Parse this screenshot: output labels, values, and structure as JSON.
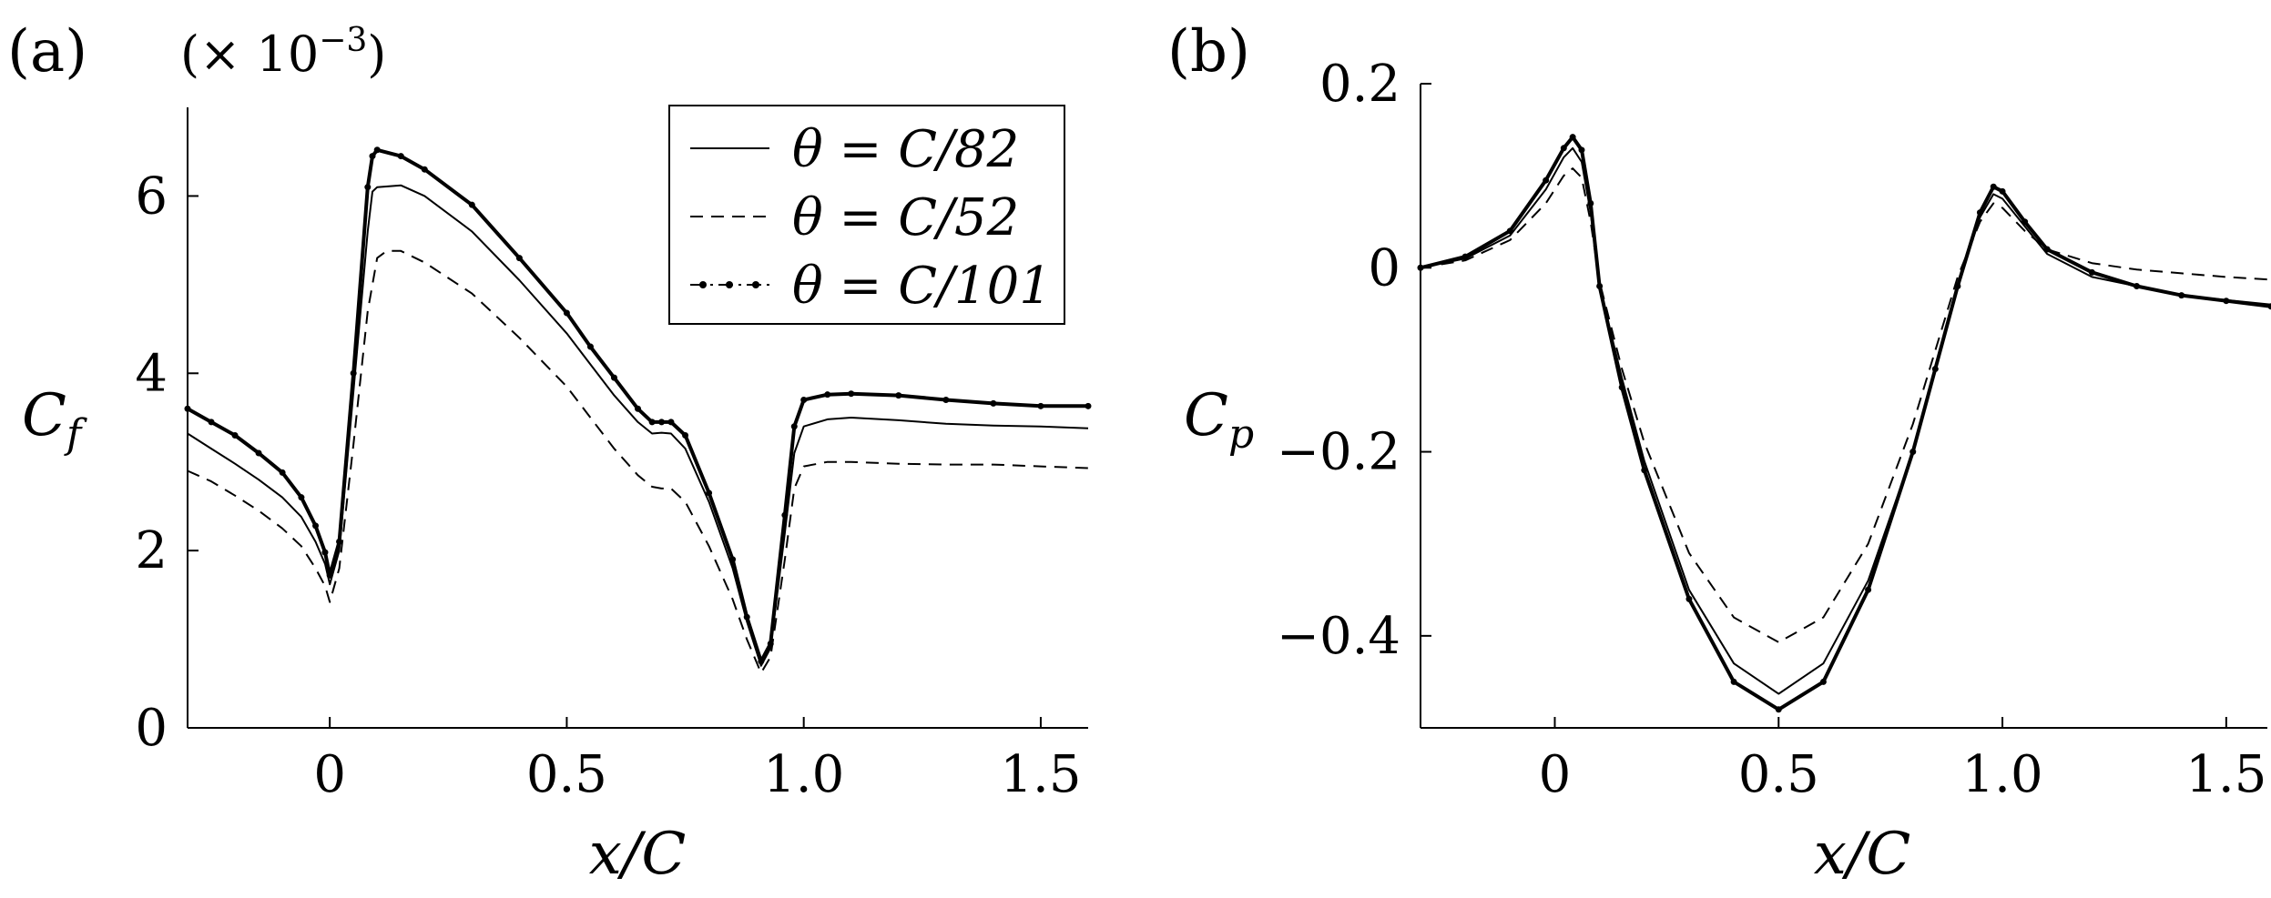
{
  "chart_data": [
    {
      "type": "line",
      "panel_label": "(a)",
      "xlabel": "x/C",
      "ylabel_main": "C",
      "ylabel_sub": "f",
      "scale_note": "(× 10",
      "scale_exp": "−3",
      "scale_close": ")",
      "xlim": [
        -0.3,
        1.6
      ],
      "ylim": [
        0,
        7
      ],
      "xticks": [
        0,
        0.5,
        1.0,
        1.5
      ],
      "xtick_labels": [
        "0",
        "0.5",
        "1.0",
        "1.5"
      ],
      "yticks": [
        0,
        2,
        4,
        6
      ],
      "ytick_labels": [
        "0",
        "2",
        "4",
        "6"
      ],
      "legend_placement": "top-right",
      "series": [
        {
          "name": "θ = C/82",
          "style": "solid",
          "points": [
            [
              -0.3,
              3.32
            ],
            [
              -0.25,
              3.15
            ],
            [
              -0.2,
              2.98
            ],
            [
              -0.15,
              2.8
            ],
            [
              -0.1,
              2.6
            ],
            [
              -0.06,
              2.38
            ],
            [
              -0.03,
              2.1
            ],
            [
              -0.01,
              1.85
            ],
            [
              0.0,
              1.62
            ],
            [
              0.02,
              2.0
            ],
            [
              0.05,
              3.8
            ],
            [
              0.08,
              5.6
            ],
            [
              0.09,
              6.05
            ],
            [
              0.1,
              6.1
            ],
            [
              0.15,
              6.12
            ],
            [
              0.2,
              6.0
            ],
            [
              0.3,
              5.6
            ],
            [
              0.4,
              5.05
            ],
            [
              0.5,
              4.45
            ],
            [
              0.55,
              4.1
            ],
            [
              0.6,
              3.75
            ],
            [
              0.65,
              3.45
            ],
            [
              0.68,
              3.32
            ],
            [
              0.7,
              3.33
            ],
            [
              0.72,
              3.32
            ],
            [
              0.75,
              3.15
            ],
            [
              0.8,
              2.55
            ],
            [
              0.85,
              1.8
            ],
            [
              0.88,
              1.2
            ],
            [
              0.91,
              0.7
            ],
            [
              0.93,
              0.9
            ],
            [
              0.96,
              2.2
            ],
            [
              0.98,
              3.1
            ],
            [
              1.0,
              3.4
            ],
            [
              1.05,
              3.48
            ],
            [
              1.1,
              3.5
            ],
            [
              1.2,
              3.47
            ],
            [
              1.3,
              3.43
            ],
            [
              1.4,
              3.41
            ],
            [
              1.5,
              3.4
            ],
            [
              1.6,
              3.38
            ]
          ]
        },
        {
          "name": "θ = C/52",
          "style": "dashed",
          "points": [
            [
              -0.3,
              2.9
            ],
            [
              -0.25,
              2.78
            ],
            [
              -0.2,
              2.62
            ],
            [
              -0.15,
              2.45
            ],
            [
              -0.1,
              2.25
            ],
            [
              -0.06,
              2.05
            ],
            [
              -0.03,
              1.8
            ],
            [
              -0.01,
              1.6
            ],
            [
              0.0,
              1.42
            ],
            [
              0.02,
              1.8
            ],
            [
              0.05,
              3.2
            ],
            [
              0.08,
              4.7
            ],
            [
              0.1,
              5.3
            ],
            [
              0.12,
              5.38
            ],
            [
              0.15,
              5.38
            ],
            [
              0.2,
              5.25
            ],
            [
              0.3,
              4.9
            ],
            [
              0.4,
              4.4
            ],
            [
              0.5,
              3.85
            ],
            [
              0.55,
              3.5
            ],
            [
              0.6,
              3.15
            ],
            [
              0.65,
              2.85
            ],
            [
              0.68,
              2.72
            ],
            [
              0.7,
              2.7
            ],
            [
              0.72,
              2.7
            ],
            [
              0.75,
              2.55
            ],
            [
              0.8,
              2.05
            ],
            [
              0.85,
              1.45
            ],
            [
              0.88,
              1.0
            ],
            [
              0.91,
              0.62
            ],
            [
              0.93,
              0.8
            ],
            [
              0.96,
              1.9
            ],
            [
              0.98,
              2.7
            ],
            [
              1.0,
              2.95
            ],
            [
              1.05,
              3.0
            ],
            [
              1.1,
              3.0
            ],
            [
              1.2,
              2.98
            ],
            [
              1.3,
              2.97
            ],
            [
              1.4,
              2.97
            ],
            [
              1.5,
              2.95
            ],
            [
              1.6,
              2.93
            ]
          ]
        },
        {
          "name": "θ = C/101",
          "style": "dash-dot-marker",
          "points": [
            [
              -0.3,
              3.6
            ],
            [
              -0.25,
              3.45
            ],
            [
              -0.2,
              3.3
            ],
            [
              -0.15,
              3.1
            ],
            [
              -0.1,
              2.88
            ],
            [
              -0.06,
              2.6
            ],
            [
              -0.03,
              2.28
            ],
            [
              -0.01,
              1.98
            ],
            [
              0.0,
              1.72
            ],
            [
              0.02,
              2.1
            ],
            [
              0.05,
              4.0
            ],
            [
              0.08,
              6.1
            ],
            [
              0.09,
              6.45
            ],
            [
              0.1,
              6.52
            ],
            [
              0.15,
              6.45
            ],
            [
              0.2,
              6.3
            ],
            [
              0.3,
              5.9
            ],
            [
              0.4,
              5.3
            ],
            [
              0.5,
              4.68
            ],
            [
              0.55,
              4.3
            ],
            [
              0.6,
              3.95
            ],
            [
              0.65,
              3.6
            ],
            [
              0.68,
              3.45
            ],
            [
              0.7,
              3.45
            ],
            [
              0.72,
              3.45
            ],
            [
              0.75,
              3.3
            ],
            [
              0.8,
              2.65
            ],
            [
              0.85,
              1.9
            ],
            [
              0.88,
              1.25
            ],
            [
              0.91,
              0.75
            ],
            [
              0.93,
              0.95
            ],
            [
              0.96,
              2.4
            ],
            [
              0.98,
              3.4
            ],
            [
              1.0,
              3.7
            ],
            [
              1.05,
              3.76
            ],
            [
              1.1,
              3.77
            ],
            [
              1.2,
              3.75
            ],
            [
              1.3,
              3.7
            ],
            [
              1.4,
              3.66
            ],
            [
              1.5,
              3.63
            ],
            [
              1.6,
              3.63
            ]
          ]
        }
      ]
    },
    {
      "type": "line",
      "panel_label": "(b)",
      "xlabel": "x/C",
      "ylabel_main": "C",
      "ylabel_sub": "p",
      "xlim": [
        -0.3,
        1.6
      ],
      "ylim": [
        -0.5,
        0.2
      ],
      "xticks": [
        0,
        0.5,
        1.0,
        1.5
      ],
      "xtick_labels": [
        "0",
        "0.5",
        "1.0",
        "1.5"
      ],
      "yticks": [
        -0.4,
        -0.2,
        0,
        0.2
      ],
      "ytick_labels": [
        "−0.4",
        "−0.2",
        "0",
        "0.2"
      ],
      "series": [
        {
          "name": "θ = C/82",
          "style": "solid",
          "points": [
            [
              -0.3,
              0.0
            ],
            [
              -0.2,
              0.01
            ],
            [
              -0.1,
              0.035
            ],
            [
              -0.02,
              0.085
            ],
            [
              0.02,
              0.12
            ],
            [
              0.04,
              0.13
            ],
            [
              0.06,
              0.115
            ],
            [
              0.08,
              0.06
            ],
            [
              0.1,
              -0.02
            ],
            [
              0.15,
              -0.12
            ],
            [
              0.2,
              -0.21
            ],
            [
              0.3,
              -0.35
            ],
            [
              0.4,
              -0.43
            ],
            [
              0.5,
              -0.463
            ],
            [
              0.6,
              -0.43
            ],
            [
              0.7,
              -0.34
            ],
            [
              0.8,
              -0.2
            ],
            [
              0.85,
              -0.11
            ],
            [
              0.9,
              -0.02
            ],
            [
              0.95,
              0.055
            ],
            [
              0.98,
              0.08
            ],
            [
              1.0,
              0.075
            ],
            [
              1.05,
              0.045
            ],
            [
              1.1,
              0.015
            ],
            [
              1.2,
              -0.01
            ],
            [
              1.3,
              -0.02
            ],
            [
              1.4,
              -0.03
            ],
            [
              1.5,
              -0.035
            ],
            [
              1.6,
              -0.04
            ]
          ]
        },
        {
          "name": "θ = C/52",
          "style": "dashed",
          "points": [
            [
              -0.3,
              0.0
            ],
            [
              -0.2,
              0.008
            ],
            [
              -0.1,
              0.03
            ],
            [
              -0.02,
              0.07
            ],
            [
              0.02,
              0.1
            ],
            [
              0.04,
              0.108
            ],
            [
              0.06,
              0.098
            ],
            [
              0.08,
              0.05
            ],
            [
              0.1,
              -0.015
            ],
            [
              0.15,
              -0.11
            ],
            [
              0.2,
              -0.19
            ],
            [
              0.3,
              -0.31
            ],
            [
              0.4,
              -0.38
            ],
            [
              0.5,
              -0.407
            ],
            [
              0.6,
              -0.38
            ],
            [
              0.7,
              -0.3
            ],
            [
              0.8,
              -0.17
            ],
            [
              0.85,
              -0.09
            ],
            [
              0.9,
              -0.01
            ],
            [
              0.95,
              0.05
            ],
            [
              0.98,
              0.07
            ],
            [
              1.0,
              0.065
            ],
            [
              1.05,
              0.04
            ],
            [
              1.1,
              0.02
            ],
            [
              1.2,
              0.005
            ],
            [
              1.3,
              -0.002
            ],
            [
              1.4,
              -0.006
            ],
            [
              1.5,
              -0.01
            ],
            [
              1.6,
              -0.013
            ]
          ]
        },
        {
          "name": "θ = C/101",
          "style": "dash-dot-marker",
          "points": [
            [
              -0.3,
              0.0
            ],
            [
              -0.2,
              0.012
            ],
            [
              -0.1,
              0.04
            ],
            [
              -0.02,
              0.095
            ],
            [
              0.02,
              0.13
            ],
            [
              0.04,
              0.142
            ],
            [
              0.06,
              0.128
            ],
            [
              0.08,
              0.07
            ],
            [
              0.1,
              -0.02
            ],
            [
              0.15,
              -0.13
            ],
            [
              0.2,
              -0.22
            ],
            [
              0.3,
              -0.36
            ],
            [
              0.4,
              -0.45
            ],
            [
              0.5,
              -0.48
            ],
            [
              0.6,
              -0.45
            ],
            [
              0.7,
              -0.35
            ],
            [
              0.8,
              -0.2
            ],
            [
              0.85,
              -0.11
            ],
            [
              0.9,
              -0.02
            ],
            [
              0.95,
              0.06
            ],
            [
              0.98,
              0.088
            ],
            [
              1.0,
              0.083
            ],
            [
              1.05,
              0.05
            ],
            [
              1.1,
              0.02
            ],
            [
              1.2,
              -0.005
            ],
            [
              1.3,
              -0.02
            ],
            [
              1.4,
              -0.03
            ],
            [
              1.5,
              -0.036
            ],
            [
              1.6,
              -0.042
            ]
          ]
        }
      ]
    }
  ]
}
